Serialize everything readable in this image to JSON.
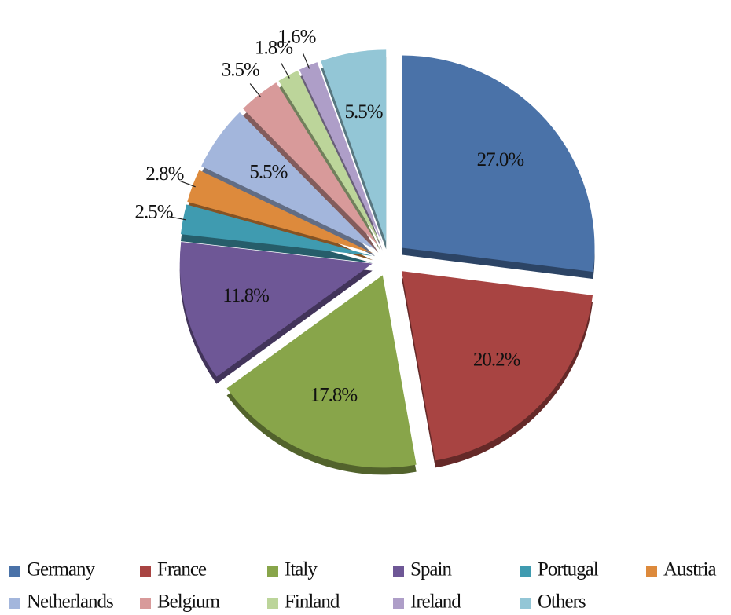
{
  "chart_data": {
    "type": "pie",
    "categories": [
      "Germany",
      "France",
      "Italy",
      "Spain",
      "Portugal",
      "Austria",
      "Netherlands",
      "Belgium",
      "Finland",
      "Ireland",
      "Others"
    ],
    "values": [
      27.0,
      20.2,
      17.8,
      11.8,
      2.5,
      2.8,
      5.5,
      3.5,
      1.8,
      1.6,
      5.5
    ],
    "value_labels": [
      "27.0%",
      "20.2%",
      "17.8%",
      "11.8%",
      "2.5%",
      "2.8%",
      "5.5%",
      "3.5%",
      "1.8%",
      "1.6%",
      "5.5%"
    ],
    "colors": [
      "#4a72a8",
      "#a84442",
      "#88a54a",
      "#6e5796",
      "#3f9bb0",
      "#dd8a3c",
      "#a3b6dc",
      "#d89a9a",
      "#bcd59a",
      "#ae9ec8",
      "#93c6d6"
    ],
    "legend": "bottom"
  }
}
